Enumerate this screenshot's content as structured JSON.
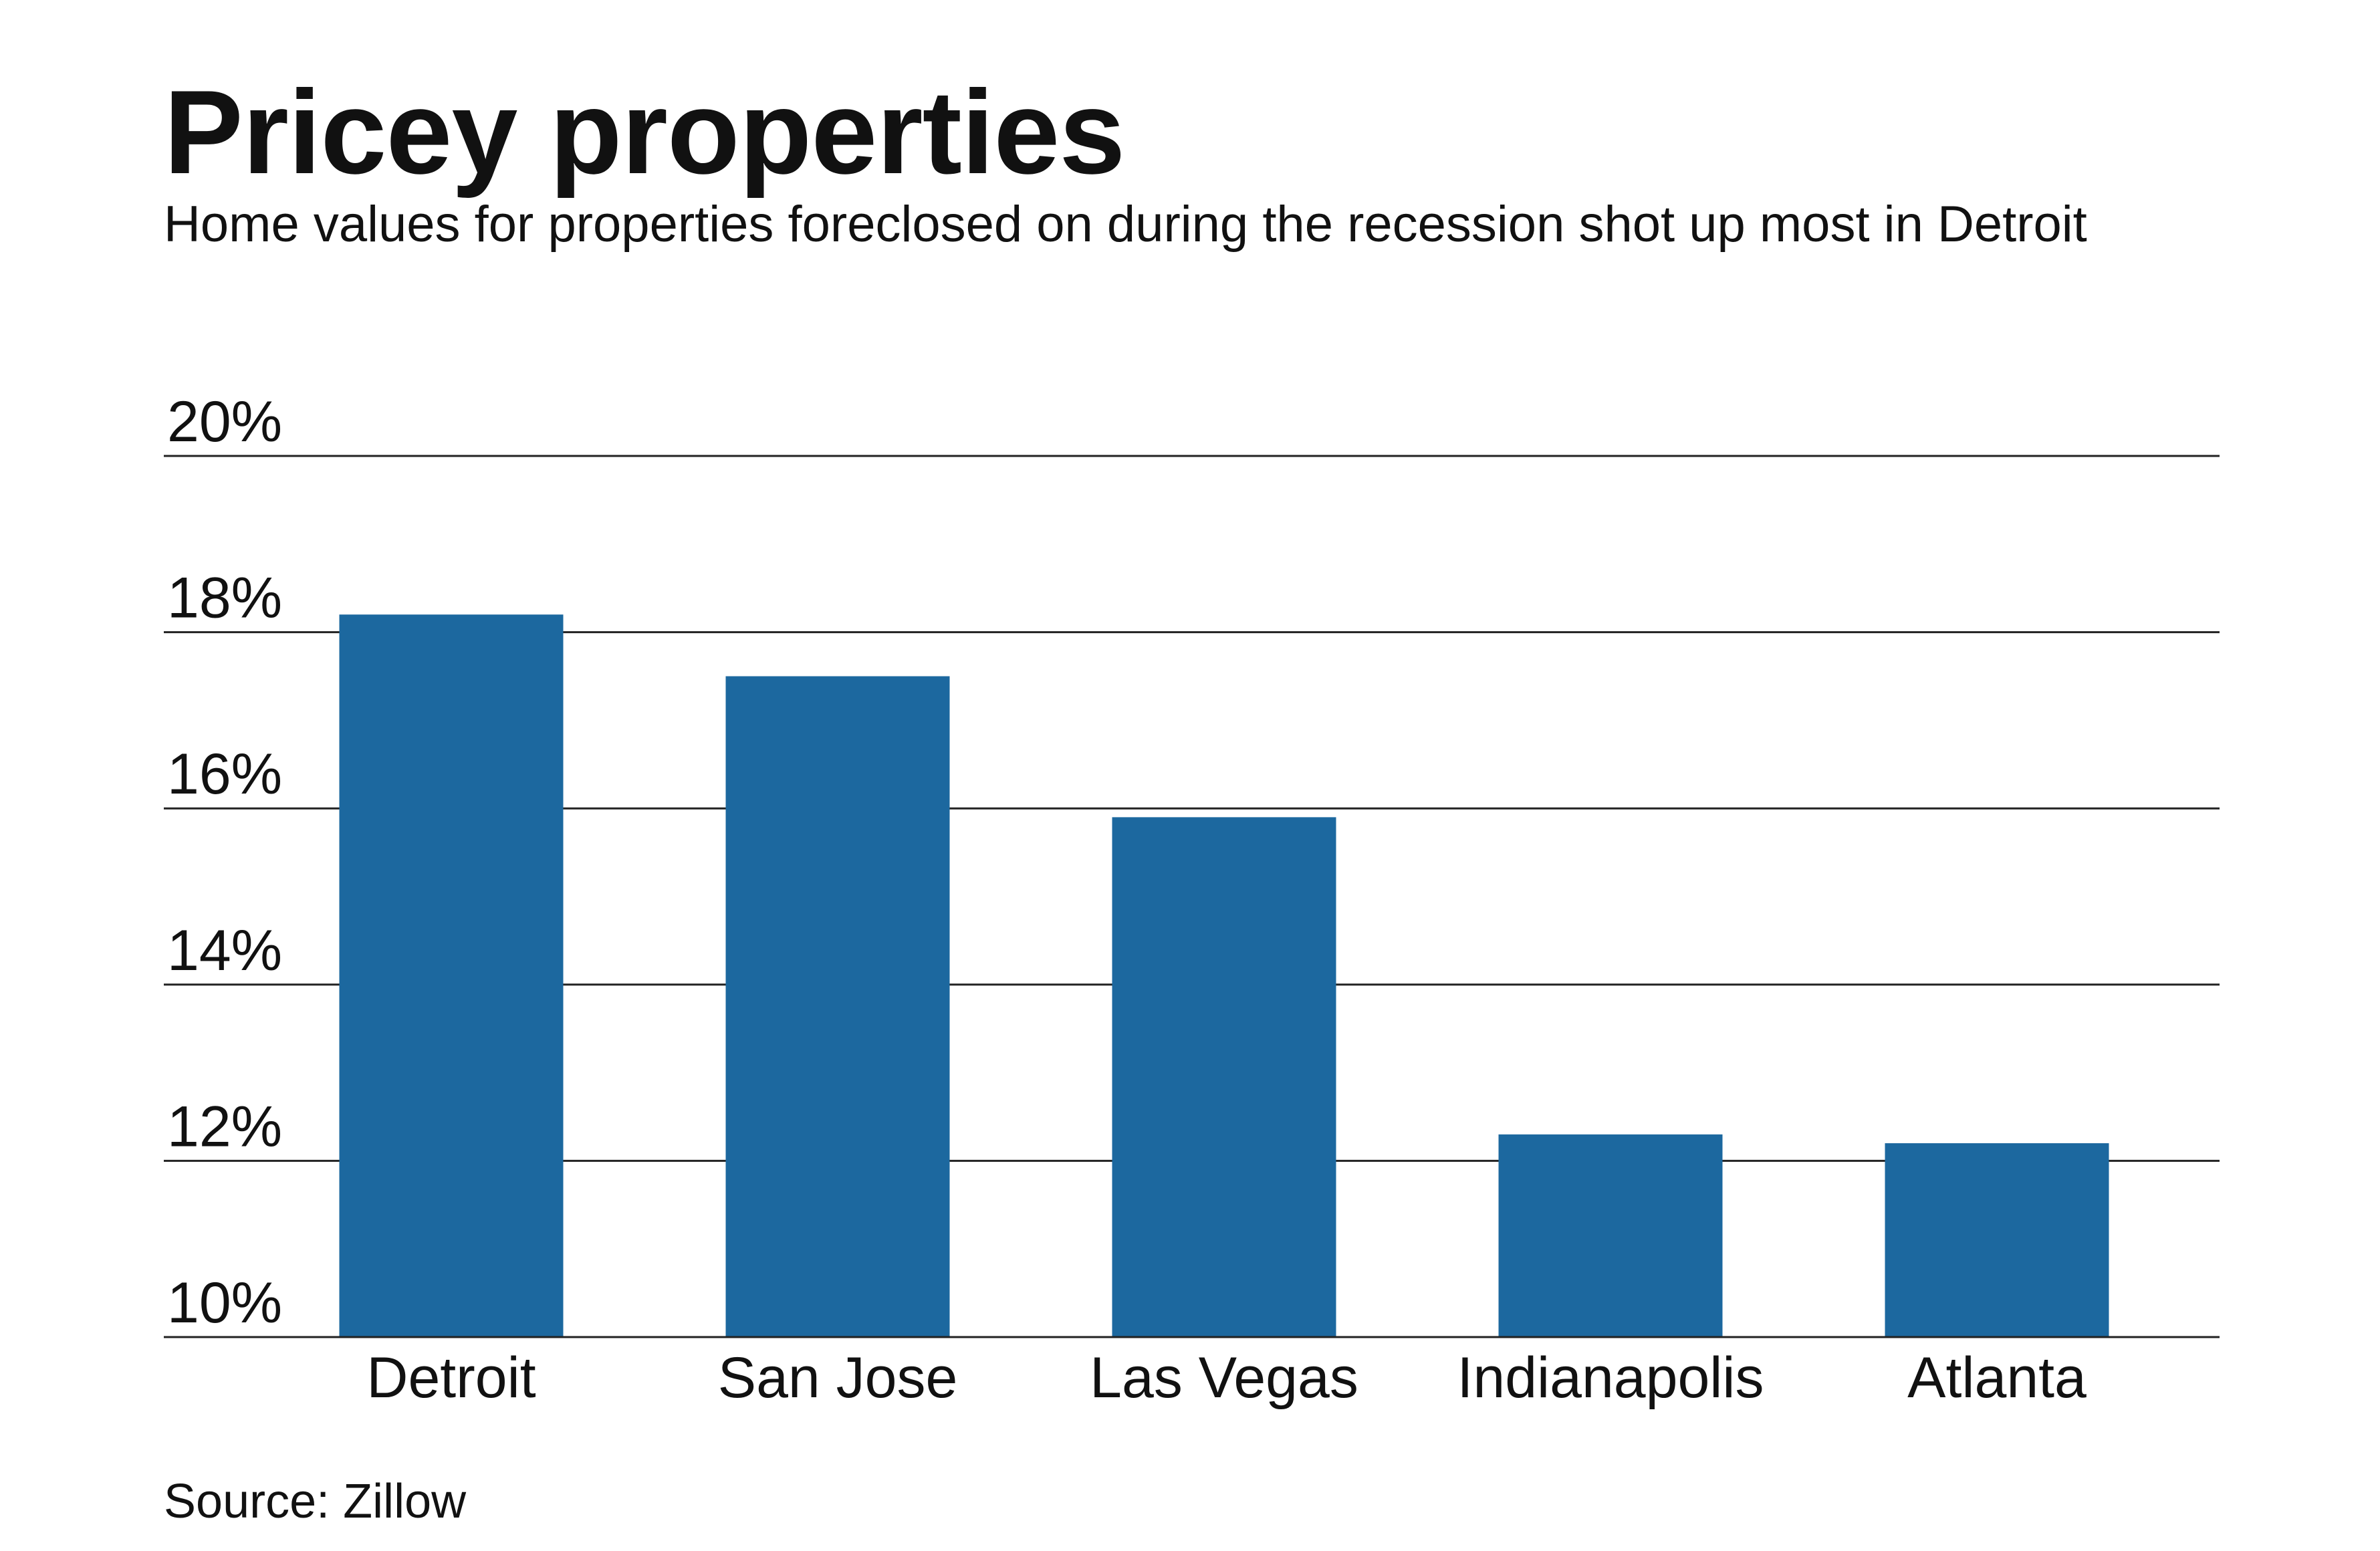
{
  "header": {
    "title": "Pricey properties",
    "subtitle": "Home values for properties foreclosed on during the recession shot up most in Detroit"
  },
  "footer": {
    "source": "Source: Zillow"
  },
  "colors": {
    "bar": "#1c689f",
    "gridline": "#222222",
    "text": "#111111"
  },
  "chart_data": {
    "type": "bar",
    "title": "Pricey properties",
    "subtitle": "Home values for properties foreclosed on during the recession shot up most in Detroit",
    "categories": [
      "Detroit",
      "San Jose",
      "Las Vegas",
      "Indianapolis",
      "Atlanta"
    ],
    "values": [
      18.2,
      17.5,
      15.9,
      12.3,
      12.2
    ],
    "ylim": [
      10,
      20
    ],
    "yticks": [
      10,
      12,
      14,
      16,
      18,
      20
    ],
    "ytick_labels": [
      "10%",
      "12%",
      "14%",
      "16%",
      "18%",
      "20%"
    ],
    "xlabel": "",
    "ylabel": "",
    "grid": true,
    "legend": "none"
  }
}
